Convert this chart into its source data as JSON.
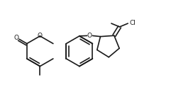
{
  "bg_color": "#ffffff",
  "line_color": "#1a1a1a",
  "line_width": 1.2,
  "figsize": [
    2.48,
    1.47
  ],
  "dpi": 100,
  "xlim": [
    0,
    10
  ],
  "ylim": [
    0,
    6
  ]
}
